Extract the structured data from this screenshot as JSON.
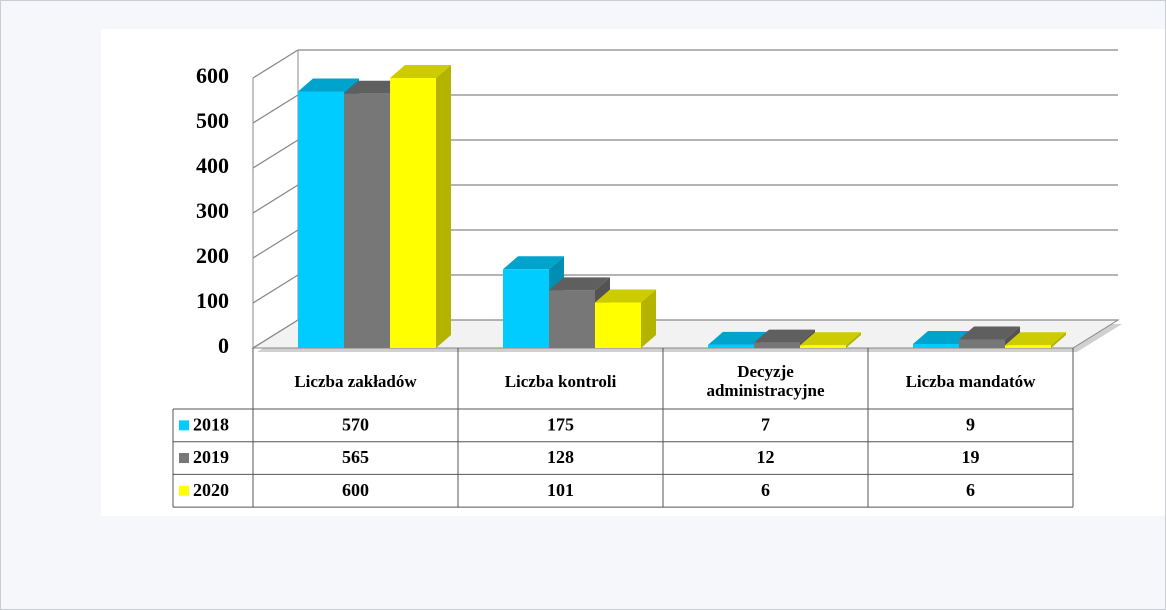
{
  "chart_data": {
    "type": "bar3d",
    "categories": [
      "Liczba zakładów",
      "Liczba kontroli",
      "Decyzje administracyjne",
      "Liczba mandatów"
    ],
    "series": [
      {
        "name": "2018",
        "color": "#00ccff",
        "values": [
          570,
          175,
          7,
          9
        ]
      },
      {
        "name": "2019",
        "color": "#777777",
        "values": [
          565,
          128,
          12,
          19
        ]
      },
      {
        "name": "2020",
        "color": "#ffff00",
        "values": [
          600,
          101,
          6,
          6
        ]
      }
    ],
    "ylim": [
      0,
      600
    ],
    "yticks": [
      0,
      100,
      200,
      300,
      400,
      500,
      600
    ],
    "grid": true,
    "data_table": true
  }
}
